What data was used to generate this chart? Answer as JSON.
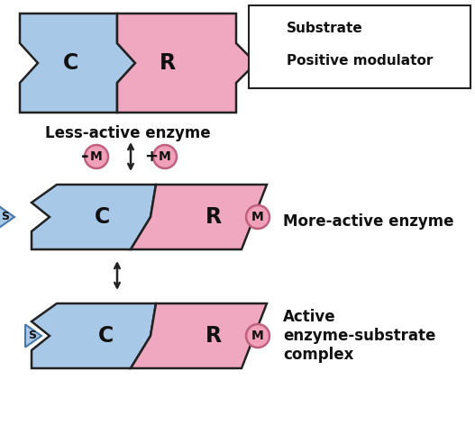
{
  "bg_color": "#ffffff",
  "blue_color": "#a8c8e8",
  "pink_color": "#f0a8c0",
  "edge_color": "#222222",
  "modulator_fill": "#f0a0b8",
  "modulator_edge": "#c06080",
  "substrate_fill": "#a8c8e8",
  "substrate_edge": "#4878a8",
  "text_color": "#111111",
  "label1": "Less-active enzyme",
  "label2": "More-active enzyme",
  "label3": "Active\nenzyme-substrate\ncomplex",
  "legend_substrate": "Substrate",
  "legend_modulator": "Positive modulator",
  "C_label": "C",
  "R_label": "R",
  "M_label": "M",
  "S_label": "S",
  "figw": 5.27,
  "figh": 4.82,
  "dpi": 100
}
